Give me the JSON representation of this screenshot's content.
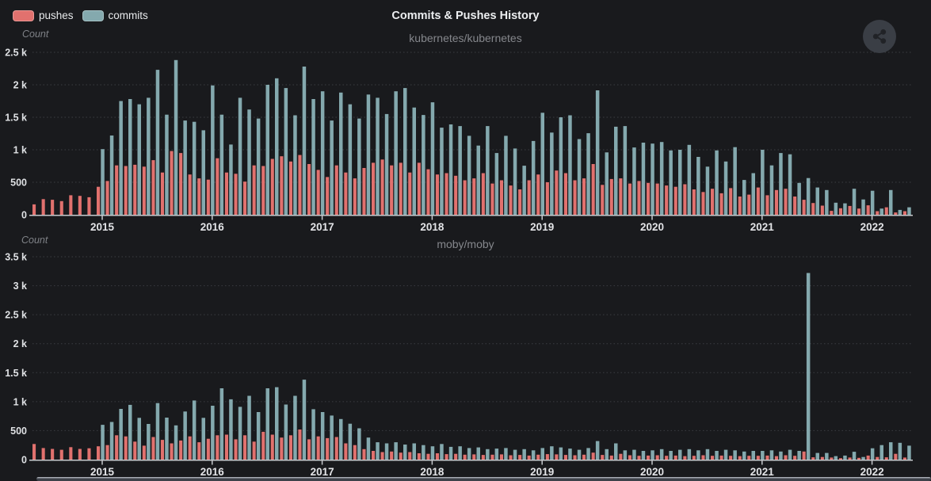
{
  "page": {
    "background": "#191a1d"
  },
  "header": {
    "title": "Commits & Pushes History",
    "legend": [
      {
        "label": "pushes",
        "color": "#e1716e"
      },
      {
        "label": "commits",
        "color": "#84a9ae"
      }
    ],
    "share_icon": "share-icon"
  },
  "scrollbar": {
    "type": "horizontal"
  },
  "chart_data": [
    {
      "type": "bar",
      "title": "kubernetes/kubernetes",
      "ylabel": "Count",
      "ylim": [
        0,
        2500
      ],
      "y_tick_step": 500,
      "y_tick_labels": [
        "0",
        "500",
        "1 k",
        "1.5 k",
        "2 k",
        "2.5 k"
      ],
      "x_tick_labels": [
        "2015",
        "2016",
        "2017",
        "2018",
        "2019",
        "2020",
        "2021",
        "2022"
      ],
      "bar_interval": "monthly",
      "x_range": [
        "2014-06",
        "2022-05"
      ],
      "grid": "horizontal-dashed",
      "legend_position": "top-left",
      "series": [
        {
          "name": "pushes",
          "color": "#e1716e",
          "values": [
            160,
            240,
            230,
            210,
            300,
            290,
            270,
            430,
            520,
            760,
            750,
            770,
            740,
            840,
            650,
            980,
            950,
            620,
            560,
            540,
            870,
            650,
            630,
            510,
            760,
            750,
            860,
            900,
            820,
            920,
            780,
            690,
            580,
            760,
            650,
            560,
            720,
            800,
            850,
            760,
            800,
            650,
            800,
            700,
            620,
            640,
            600,
            530,
            560,
            640,
            480,
            530,
            450,
            390,
            530,
            620,
            500,
            680,
            640,
            530,
            560,
            780,
            460,
            550,
            560,
            480,
            520,
            490,
            480,
            450,
            430,
            470,
            390,
            350,
            400,
            330,
            410,
            280,
            310,
            420,
            300,
            380,
            400,
            280,
            230,
            180,
            140,
            60,
            100,
            135,
            95,
            145,
            55,
            115,
            35,
            55
          ]
        },
        {
          "name": "commits",
          "color": "#84a9ae",
          "values": [
            0,
            0,
            0,
            0,
            0,
            0,
            0,
            1010,
            1220,
            1750,
            1780,
            1700,
            1800,
            2230,
            1540,
            2380,
            1450,
            1430,
            1300,
            1990,
            1540,
            1080,
            1800,
            1620,
            1480,
            2000,
            2100,
            1950,
            1530,
            2280,
            1780,
            1900,
            1450,
            1880,
            1700,
            1480,
            1850,
            1800,
            1550,
            1900,
            1950,
            1650,
            1535,
            1730,
            1340,
            1390,
            1365,
            1215,
            1065,
            1365,
            950,
            1215,
            1020,
            755,
            1135,
            1570,
            1265,
            1500,
            1530,
            1165,
            1255,
            1915,
            960,
            1355,
            1365,
            1035,
            1110,
            1095,
            1120,
            990,
            1000,
            1075,
            890,
            740,
            990,
            820,
            1040,
            535,
            640,
            1000,
            760,
            950,
            930,
            490,
            565,
            420,
            380,
            185,
            175,
            400,
            235,
            370,
            95,
            380,
            75,
            115
          ]
        }
      ]
    },
    {
      "type": "bar",
      "title": "moby/moby",
      "ylabel": "Count",
      "ylim": [
        0,
        3500
      ],
      "y_tick_step": 500,
      "y_tick_labels": [
        "0",
        "500",
        "1 k",
        "1.5 k",
        "2 k",
        "2.5 k",
        "3 k",
        "3.5 k"
      ],
      "x_tick_labels": [
        "2015",
        "2016",
        "2017",
        "2018",
        "2019",
        "2020",
        "2021",
        "2022"
      ],
      "bar_interval": "monthly",
      "x_range": [
        "2014-06",
        "2022-05"
      ],
      "grid": "horizontal-dashed",
      "legend_position": "top-left",
      "series": [
        {
          "name": "pushes",
          "color": "#e1716e",
          "values": [
            270,
            200,
            185,
            170,
            215,
            185,
            195,
            230,
            250,
            420,
            400,
            310,
            240,
            390,
            340,
            280,
            330,
            400,
            300,
            360,
            420,
            430,
            350,
            420,
            310,
            480,
            430,
            380,
            420,
            520,
            350,
            400,
            370,
            390,
            280,
            250,
            180,
            150,
            130,
            140,
            120,
            130,
            110,
            100,
            110,
            95,
            100,
            85,
            90,
            80,
            85,
            90,
            75,
            80,
            70,
            85,
            95,
            90,
            80,
            75,
            85,
            120,
            80,
            70,
            100,
            75,
            65,
            70,
            75,
            65,
            70,
            60,
            65,
            75,
            65,
            70,
            65,
            60,
            65,
            65,
            70,
            60,
            75,
            65,
            140,
            40,
            45,
            35,
            25,
            35,
            30,
            70,
            45,
            40,
            100,
            35
          ]
        },
        {
          "name": "commits",
          "color": "#84a9ae",
          "values": [
            0,
            0,
            0,
            0,
            0,
            0,
            0,
            600,
            650,
            875,
            945,
            720,
            615,
            975,
            725,
            590,
            830,
            1020,
            720,
            930,
            1230,
            1040,
            910,
            1100,
            820,
            1230,
            1250,
            950,
            1100,
            1380,
            870,
            820,
            760,
            700,
            620,
            540,
            380,
            300,
            280,
            300,
            260,
            280,
            250,
            230,
            270,
            220,
            230,
            200,
            210,
            180,
            190,
            200,
            170,
            180,
            160,
            200,
            230,
            210,
            190,
            170,
            200,
            320,
            180,
            280,
            160,
            170,
            150,
            160,
            180,
            150,
            170,
            180,
            160,
            180,
            150,
            170,
            160,
            140,
            150,
            150,
            160,
            140,
            170,
            150,
            3220,
            115,
            115,
            60,
            70,
            135,
            45,
            195,
            250,
            300,
            290,
            240
          ]
        }
      ]
    }
  ]
}
